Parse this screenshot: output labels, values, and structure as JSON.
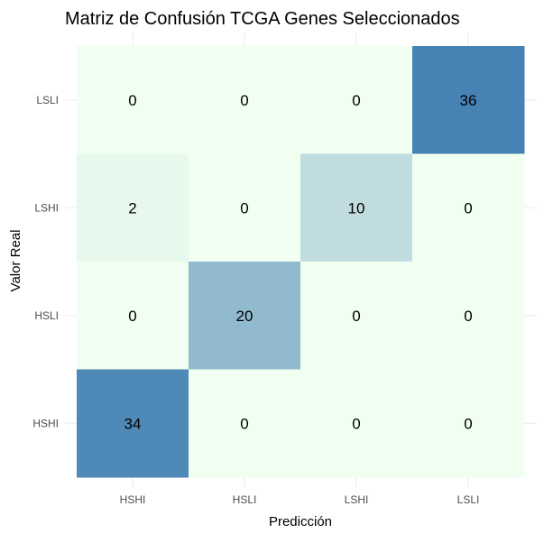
{
  "chart_data": {
    "type": "heatmap",
    "title": "Matriz de Confusión TCGA Genes Seleccionados",
    "xlabel": "Predicción",
    "ylabel": "Valor Real",
    "x_categories": [
      "HSHI",
      "HSLI",
      "LSHI",
      "LSLI"
    ],
    "y_categories": [
      "LSLI",
      "LSHI",
      "HSLI",
      "HSHI"
    ],
    "matrix": [
      [
        0,
        0,
        0,
        36
      ],
      [
        2,
        0,
        10,
        0
      ],
      [
        0,
        20,
        0,
        0
      ],
      [
        34,
        0,
        0,
        0
      ]
    ],
    "color_scale": {
      "low": "#f0fff0",
      "high": "#4682b4",
      "min": 0,
      "max": 36
    },
    "grid": true,
    "legend": "none"
  }
}
